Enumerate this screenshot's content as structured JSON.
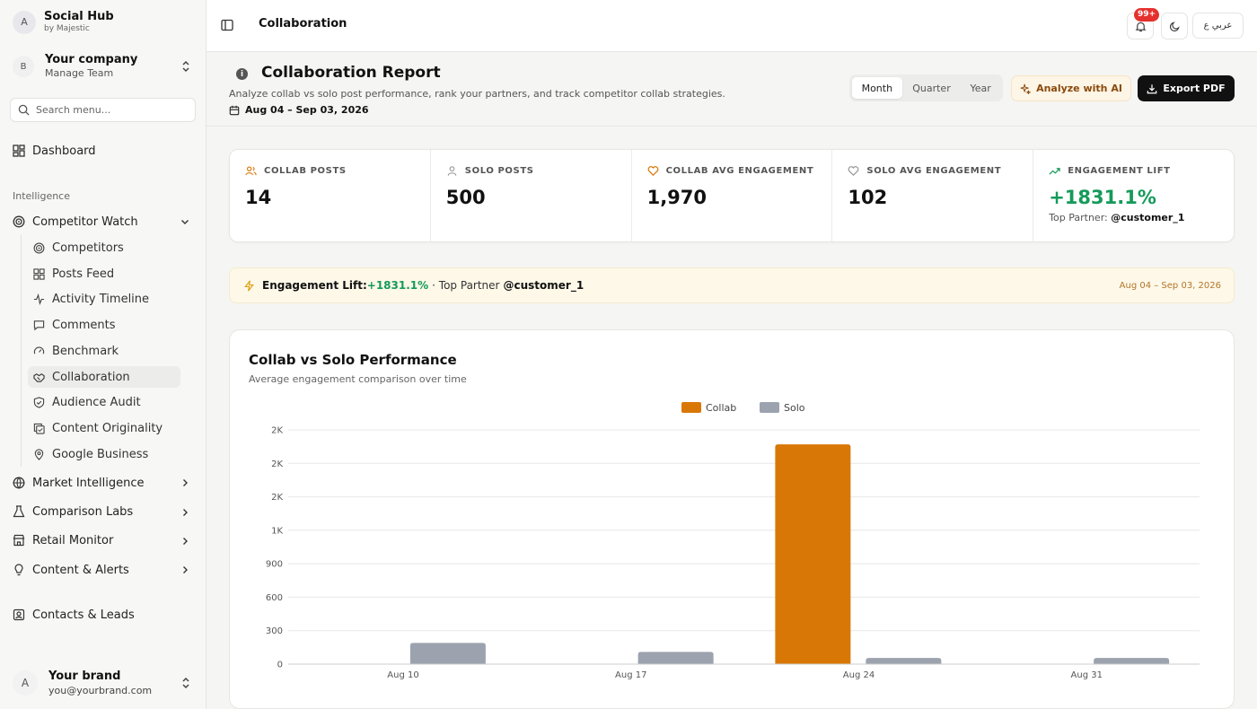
{
  "brand": {
    "avatar": "A",
    "title": "Social Hub",
    "subtitle": "by Majestic"
  },
  "company": {
    "avatar": "B",
    "name": "Your company",
    "sub": "Manage Team"
  },
  "search": {
    "placeholder": "Search menu..."
  },
  "nav": {
    "dashboard": "Dashboard",
    "section_intelligence": "Intelligence",
    "competitor_watch": "Competitor Watch",
    "sub_items": [
      "Competitors",
      "Posts Feed",
      "Activity Timeline",
      "Comments",
      "Benchmark",
      "Collaboration",
      "Audience Audit",
      "Content Originality",
      "Google Business"
    ],
    "active_sub": "Collaboration",
    "market_intelligence": "Market Intelligence",
    "comparison_labs": "Comparison Labs",
    "retail_monitor": "Retail Monitor",
    "content_alerts": "Content & Alerts",
    "contacts_leads": "Contacts & Leads"
  },
  "user": {
    "avatar": "A",
    "name": "Your brand",
    "email": "you@yourbrand.com"
  },
  "topbar": {
    "title": "Collaboration",
    "notifications_badge": "99+",
    "language": "عربي ع"
  },
  "header": {
    "title": "Collaboration Report",
    "subtitle": "Analyze collab vs solo post performance, rank your partners, and track competitor collab strategies.",
    "date_range": "Aug 04 – Sep 03, 2026",
    "periods": [
      "Month",
      "Quarter",
      "Year"
    ],
    "active_period": "Month",
    "analyze_label": "Analyze with AI",
    "export_label": "Export PDF"
  },
  "stats": [
    {
      "label": "COLLAB POSTS",
      "value": "14",
      "icon": "users-icon"
    },
    {
      "label": "SOLO POSTS",
      "value": "500",
      "icon": "user-icon"
    },
    {
      "label": "COLLAB AVG ENGAGEMENT",
      "value": "1,970",
      "icon": "heart-icon"
    },
    {
      "label": "SOLO AVG ENGAGEMENT",
      "value": "102",
      "icon": "heart-icon"
    },
    {
      "label": "ENGAGEMENT LIFT",
      "value": "+1831.1%",
      "icon": "trending-up-icon",
      "foot_label": "Top Partner:",
      "foot_value": "@customer_1"
    }
  ],
  "banner": {
    "label": "Engagement Lift:",
    "value": "+1831.1%",
    "middle": "· Top Partner",
    "partner": "@customer_1",
    "date": "Aug 04 – Sep 03, 2026"
  },
  "chart": {
    "title": "Collab vs Solo Performance",
    "subtitle": "Average engagement comparison over time"
  },
  "chart_data": {
    "type": "bar",
    "categories": [
      "Aug 10",
      "Aug 17",
      "Aug 24",
      "Aug 31"
    ],
    "series": [
      {
        "name": "Collab",
        "values": [
          0,
          0,
          1970,
          0
        ],
        "color": "#d97706"
      },
      {
        "name": "Solo",
        "values": [
          190,
          110,
          55,
          55
        ],
        "color": "#9ca3af"
      }
    ],
    "y_ticks": [
      {
        "value": 0,
        "label": "0"
      },
      {
        "value": 300,
        "label": "300"
      },
      {
        "value": 600,
        "label": "600"
      },
      {
        "value": 900,
        "label": "900"
      },
      {
        "value": 1200,
        "label": "1K"
      },
      {
        "value": 1500,
        "label": "2K"
      },
      {
        "value": 1800,
        "label": "2K"
      },
      {
        "value": 2100,
        "label": "2K"
      }
    ],
    "ylim": [
      0,
      2100
    ],
    "legend": "top-center",
    "grid": true
  }
}
